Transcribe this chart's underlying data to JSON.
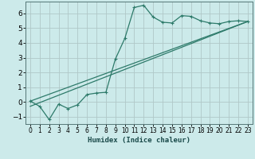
{
  "xlabel": "Humidex (Indice chaleur)",
  "bg_color": "#cceaea",
  "grid_color": "#b0c8c8",
  "line_color": "#2d7a6a",
  "xlim": [
    -0.5,
    23.5
  ],
  "ylim": [
    -1.5,
    6.8
  ],
  "yticks": [
    -1,
    0,
    1,
    2,
    3,
    4,
    5,
    6
  ],
  "xticks": [
    0,
    1,
    2,
    3,
    4,
    5,
    6,
    7,
    8,
    9,
    10,
    11,
    12,
    13,
    14,
    15,
    16,
    17,
    18,
    19,
    20,
    21,
    22,
    23
  ],
  "line1_x": [
    0,
    1,
    2,
    3,
    4,
    5,
    6,
    7,
    8,
    9,
    10,
    11,
    12,
    13,
    14,
    15,
    16,
    17,
    18,
    19,
    20,
    21,
    22,
    23
  ],
  "line1_y": [
    0.05,
    -0.3,
    -1.2,
    -0.15,
    -0.45,
    -0.2,
    0.5,
    0.6,
    0.65,
    2.9,
    4.3,
    6.4,
    6.55,
    5.75,
    5.4,
    5.35,
    5.85,
    5.8,
    5.5,
    5.35,
    5.3,
    5.45,
    5.5,
    5.45
  ],
  "line2_x": [
    0,
    23
  ],
  "line2_y": [
    0.05,
    5.45
  ],
  "line3_x": [
    0,
    23
  ],
  "line3_y": [
    -0.3,
    5.45
  ],
  "xlabel_fontsize": 6.5,
  "tick_fontsize_x": 5.5,
  "tick_fontsize_y": 6.5
}
